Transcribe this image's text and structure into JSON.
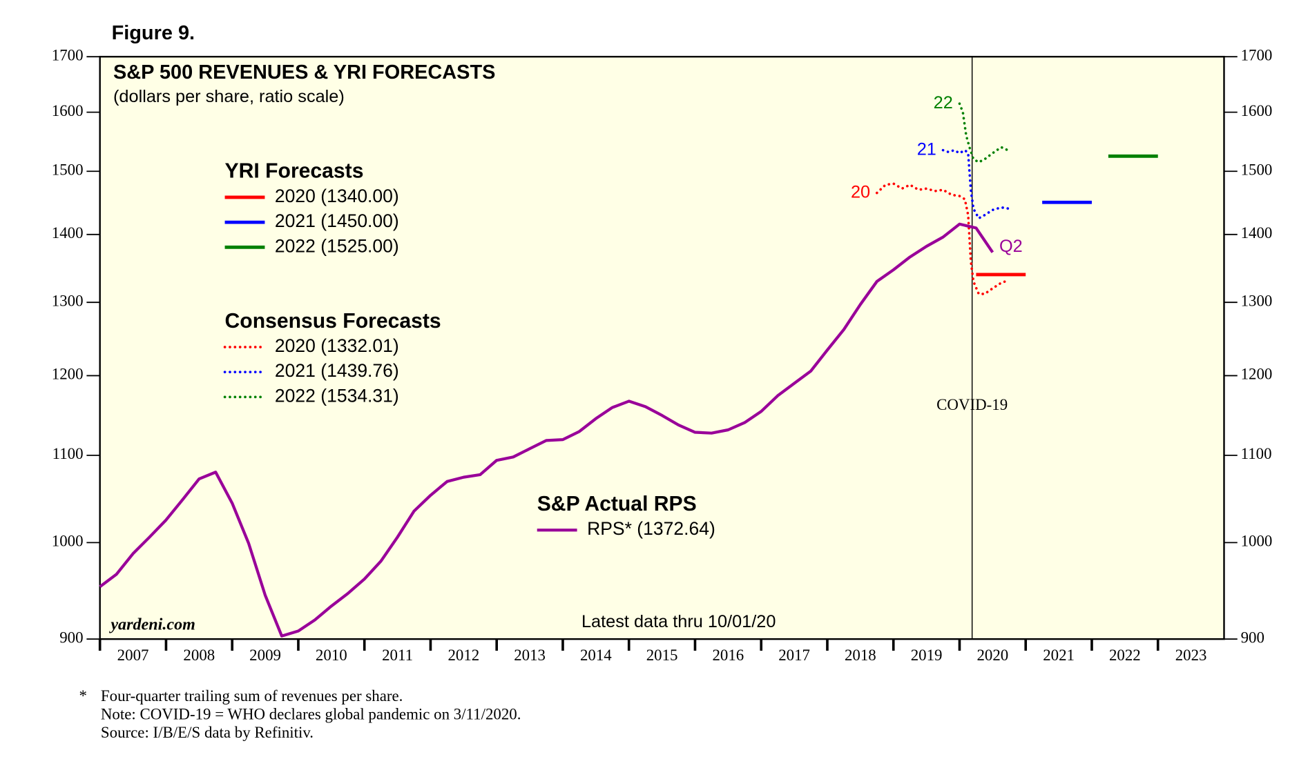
{
  "chart_data": {
    "type": "line",
    "figure_label": "Figure 9.",
    "title": "S&P 500 REVENUES & YRI FORECASTS",
    "subtitle": "(dollars per share, ratio scale)",
    "log_scale": true,
    "ylim": [
      900,
      1700
    ],
    "yticks": [
      900,
      1000,
      1100,
      1200,
      1300,
      1400,
      1500,
      1600,
      1700
    ],
    "xlim": [
      2007,
      2024
    ],
    "xticks": [
      {
        "value": 2007.5,
        "label": "2007"
      },
      {
        "value": 2008.5,
        "label": "2008"
      },
      {
        "value": 2009.5,
        "label": "2009"
      },
      {
        "value": 2010.5,
        "label": "2010"
      },
      {
        "value": 2011.5,
        "label": "2011"
      },
      {
        "value": 2012.5,
        "label": "2012"
      },
      {
        "value": 2013.5,
        "label": "2013"
      },
      {
        "value": 2014.5,
        "label": "2014"
      },
      {
        "value": 2015.5,
        "label": "2015"
      },
      {
        "value": 2016.5,
        "label": "2016"
      },
      {
        "value": 2017.5,
        "label": "2017"
      },
      {
        "value": 2018.5,
        "label": "2018"
      },
      {
        "value": 2019.5,
        "label": "2019"
      },
      {
        "value": 2020.5,
        "label": "2020"
      },
      {
        "value": 2021.5,
        "label": "2021"
      },
      {
        "value": 2022.5,
        "label": "2022"
      },
      {
        "value": 2023.5,
        "label": "2023"
      }
    ],
    "event_line": {
      "x": 2020.19,
      "label": "COVID-19"
    },
    "source_label": "yardeni.com",
    "latest_note": "Latest data thru 10/01/20",
    "footnote_marker": "*",
    "footnotes": [
      "Four-quarter trailing sum of revenues per share.",
      "Note: COVID-19 = WHO declares global pandemic on 3/11/2020.",
      "Source: I/B/E/S data by Refinitiv."
    ],
    "groups": [
      {
        "title": "YRI Forecasts",
        "style": "segment",
        "series": [
          {
            "name": "2020 (1340.00)",
            "color": "#ff0000",
            "x": [
              2020.25,
              2021.0
            ],
            "value": 1340
          },
          {
            "name": "2021 (1450.00)",
            "color": "#0000ff",
            "x": [
              2021.25,
              2022.0
            ],
            "value": 1450
          },
          {
            "name": "2022 (1525.00)",
            "color": "#008000",
            "x": [
              2022.25,
              2023.0
            ],
            "value": 1525
          }
        ]
      },
      {
        "title": "Consensus Forecasts",
        "style": "dotted",
        "series": [
          {
            "name": "2020 (1332.01)",
            "color": "#ff0000",
            "label": "20",
            "x": [
              2018.75,
              2018.88,
              2019.0,
              2019.13,
              2019.25,
              2019.38,
              2019.5,
              2019.63,
              2019.75,
              2019.88,
              2020.0,
              2020.08,
              2020.13,
              2020.17,
              2020.21,
              2020.29,
              2020.38,
              2020.5,
              2020.63,
              2020.75
            ],
            "values": [
              1465,
              1478,
              1480,
              1472,
              1478,
              1470,
              1472,
              1468,
              1470,
              1462,
              1460,
              1455,
              1430,
              1360,
              1330,
              1312,
              1312,
              1320,
              1328,
              1332
            ]
          },
          {
            "name": "2021 (1439.76)",
            "color": "#0000ff",
            "label": "21",
            "x": [
              2019.75,
              2019.83,
              2019.92,
              2020.0,
              2020.08,
              2020.13,
              2020.17,
              2020.21,
              2020.29,
              2020.38,
              2020.5,
              2020.63,
              2020.75
            ],
            "values": [
              1535,
              1532,
              1535,
              1530,
              1535,
              1530,
              1470,
              1440,
              1425,
              1430,
              1438,
              1442,
              1440
            ]
          },
          {
            "name": "2022 (1534.31)",
            "color": "#008000",
            "label": "22",
            "x": [
              2020.0,
              2020.05,
              2020.1,
              2020.15,
              2020.21,
              2020.29,
              2020.38,
              2020.5,
              2020.63,
              2020.75
            ],
            "values": [
              1615,
              1600,
              1560,
              1540,
              1520,
              1515,
              1520,
              1530,
              1540,
              1534
            ]
          }
        ]
      },
      {
        "title": "S&P Actual RPS",
        "style": "solid",
        "series": [
          {
            "name": "RPS* (1372.64)",
            "color": "#990099",
            "label": "Q2",
            "x": [
              2007.0,
              2007.25,
              2007.5,
              2007.75,
              2008.0,
              2008.25,
              2008.5,
              2008.75,
              2009.0,
              2009.25,
              2009.5,
              2009.75,
              2010.0,
              2010.25,
              2010.5,
              2010.75,
              2011.0,
              2011.25,
              2011.5,
              2011.75,
              2012.0,
              2012.25,
              2012.5,
              2012.75,
              2013.0,
              2013.25,
              2013.5,
              2013.75,
              2014.0,
              2014.25,
              2014.5,
              2014.75,
              2015.0,
              2015.25,
              2015.5,
              2015.75,
              2016.0,
              2016.25,
              2016.5,
              2016.75,
              2017.0,
              2017.25,
              2017.5,
              2017.75,
              2018.0,
              2018.25,
              2018.5,
              2018.75,
              2019.0,
              2019.25,
              2019.5,
              2019.75,
              2020.0,
              2020.25,
              2020.5
            ],
            "values": [
              953,
              966,
              988,
              1006,
              1025,
              1048,
              1072,
              1080,
              1044,
              999,
              944,
              903,
              908,
              919,
              933,
              946,
              961,
              980,
              1006,
              1035,
              1053,
              1069,
              1074,
              1077,
              1094,
              1098,
              1108,
              1118,
              1119,
              1129,
              1145,
              1159,
              1167,
              1160,
              1149,
              1137,
              1128,
              1127,
              1131,
              1140,
              1154,
              1174,
              1190,
              1206,
              1234,
              1262,
              1297,
              1330,
              1347,
              1366,
              1382,
              1396,
              1416,
              1410,
              1373
            ]
          }
        ]
      }
    ]
  }
}
